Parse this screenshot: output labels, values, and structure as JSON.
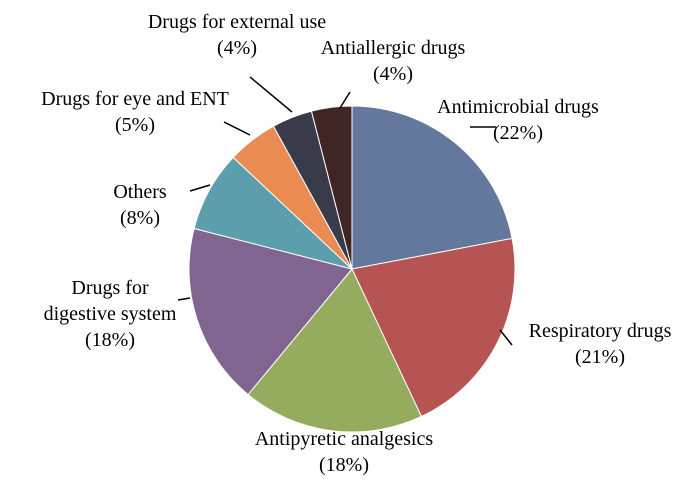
{
  "chart_data": {
    "type": "pie",
    "title": "",
    "start_angle_deg": 90,
    "direction": "clockwise",
    "legend": "none",
    "labels_style": "callouts-with-leader-lines",
    "slices": [
      {
        "name": "Antimicrobial drugs",
        "value": 22,
        "percent_label": "(22%)",
        "color": "#64789e"
      },
      {
        "name": "Respiratory drugs",
        "value": 21,
        "percent_label": "(21%)",
        "color": "#b55453"
      },
      {
        "name": "Antipyretic analgesics",
        "value": 18,
        "percent_label": "(18%)",
        "color": "#95ab5d"
      },
      {
        "name": "Drugs for digestive system",
        "value": 18,
        "percent_label": "(18%)",
        "color": "#7f6590"
      },
      {
        "name": "Others",
        "value": 8,
        "percent_label": "(8%)",
        "color": "#5c9eab"
      },
      {
        "name": "Drugs for eye and ENT",
        "value": 5,
        "percent_label": "(5%)",
        "color": "#ea8b52"
      },
      {
        "name": "Drugs for external use",
        "value": 4,
        "percent_label": "(4%)",
        "color": "#393a4a"
      },
      {
        "name": "Antiallergic drugs",
        "value": 4,
        "percent_label": "(4%)",
        "color": "#3f2523"
      }
    ]
  }
}
